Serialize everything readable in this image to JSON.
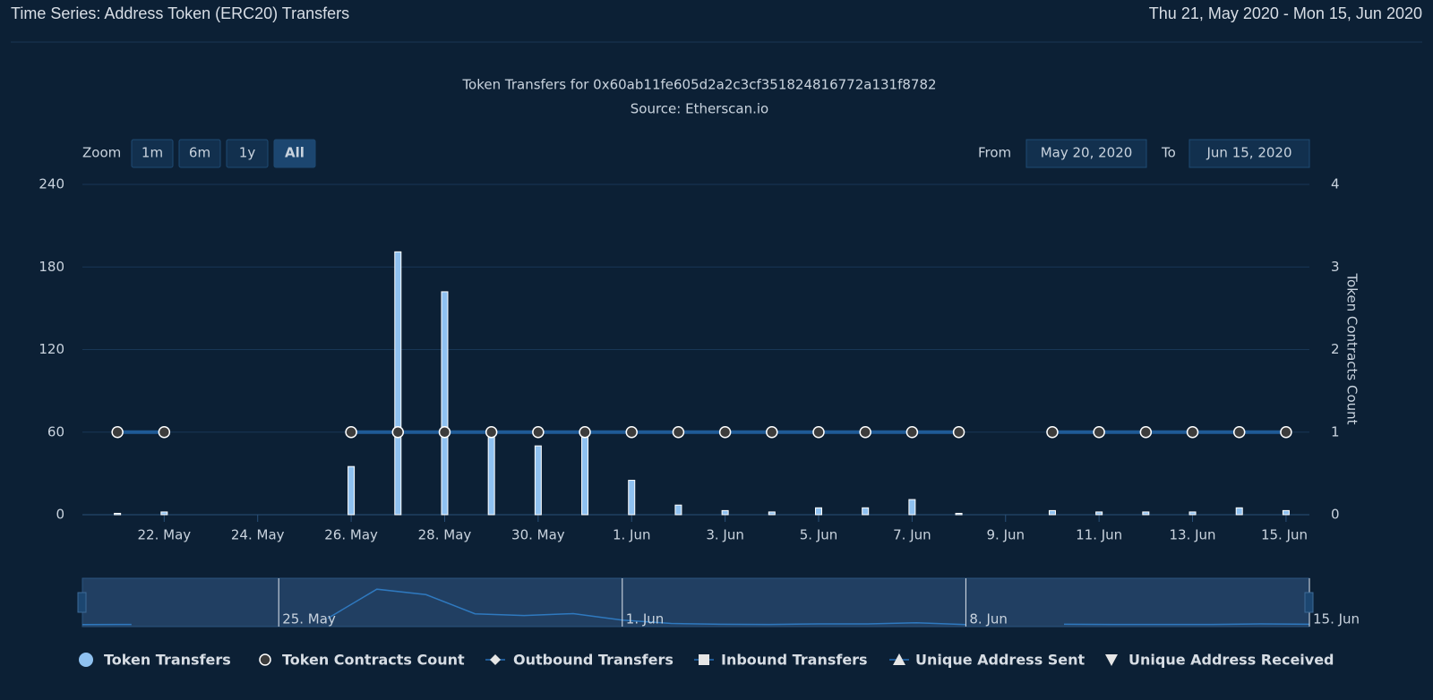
{
  "header": {
    "title": "Time Series: Address Token (ERC20) Transfers",
    "date_range": "Thu 21, May 2020 - Mon 15, Jun 2020"
  },
  "chart_data": {
    "type": "bar",
    "title": "Token Transfers for 0x60ab11fe605d2a2c3cf351824816772a131f8782",
    "subtitle": "Source: Etherscan.io",
    "zoom_label": "Zoom",
    "zoom_buttons": [
      "1m",
      "6m",
      "1y",
      "All"
    ],
    "range_from_label": "From",
    "range_from": "May 20, 2020",
    "range_to_label": "To",
    "range_to": "Jun 15, 2020",
    "x": [
      "2020-05-21",
      "2020-05-22",
      "2020-05-23",
      "2020-05-24",
      "2020-05-25",
      "2020-05-26",
      "2020-05-27",
      "2020-05-28",
      "2020-05-29",
      "2020-05-30",
      "2020-05-31",
      "2020-06-01",
      "2020-06-02",
      "2020-06-03",
      "2020-06-04",
      "2020-06-05",
      "2020-06-06",
      "2020-06-07",
      "2020-06-08",
      "2020-06-09",
      "2020-06-10",
      "2020-06-11",
      "2020-06-12",
      "2020-06-13",
      "2020-06-14",
      "2020-06-15"
    ],
    "series": [
      {
        "name": "Token Transfers",
        "color": "#8fc1f0",
        "values": [
          1,
          2,
          null,
          null,
          null,
          35,
          191,
          162,
          59,
          50,
          60,
          25,
          7,
          3,
          2,
          5,
          5,
          11,
          1,
          null,
          3,
          2,
          2,
          2,
          5,
          3
        ]
      },
      {
        "name": "Token Contracts Count",
        "color": "#1f5a96",
        "axis": "y2",
        "values": [
          1,
          1,
          null,
          null,
          null,
          1,
          1,
          1,
          1,
          1,
          1,
          1,
          1,
          1,
          1,
          1,
          1,
          1,
          1,
          null,
          1,
          1,
          1,
          1,
          1,
          1
        ]
      }
    ],
    "other_legend": [
      "Outbound Transfers",
      "Inbound Transfers",
      "Unique Address Sent",
      "Unique Address Received"
    ],
    "xlim": [
      "2020-05-20T06:00:00Z",
      "2020-06-15T12:00:00Z"
    ],
    "xticks": [
      {
        "value": "2020-05-22",
        "label": "22. May"
      },
      {
        "value": "2020-05-24",
        "label": "24. May"
      },
      {
        "value": "2020-05-26",
        "label": "26. May"
      },
      {
        "value": "2020-05-28",
        "label": "28. May"
      },
      {
        "value": "2020-05-30",
        "label": "30. May"
      },
      {
        "value": "2020-06-01",
        "label": "1. Jun"
      },
      {
        "value": "2020-06-03",
        "label": "3. Jun"
      },
      {
        "value": "2020-06-05",
        "label": "5. Jun"
      },
      {
        "value": "2020-06-07",
        "label": "7. Jun"
      },
      {
        "value": "2020-06-09",
        "label": "9. Jun"
      },
      {
        "value": "2020-06-11",
        "label": "11. Jun"
      },
      {
        "value": "2020-06-13",
        "label": "13. Jun"
      },
      {
        "value": "2020-06-15",
        "label": "15. Jun"
      }
    ],
    "ylim": [
      0,
      240
    ],
    "yticks": [
      0,
      60,
      120,
      180,
      240
    ],
    "y2label": "Token Contracts Count",
    "y2lim": [
      0,
      4
    ],
    "y2ticks": [
      0,
      1,
      2,
      3,
      4
    ],
    "grid": true,
    "navigator_xlim": [
      "2020-05-21",
      "2020-06-15"
    ],
    "navigator_ticks": [
      {
        "value": "2020-05-25",
        "label": "25. May"
      },
      {
        "value": "2020-06-01",
        "label": "1. Jun"
      },
      {
        "value": "2020-06-08",
        "label": "8. Jun"
      },
      {
        "value": "2020-06-15",
        "label": "15. Jun"
      }
    ]
  }
}
